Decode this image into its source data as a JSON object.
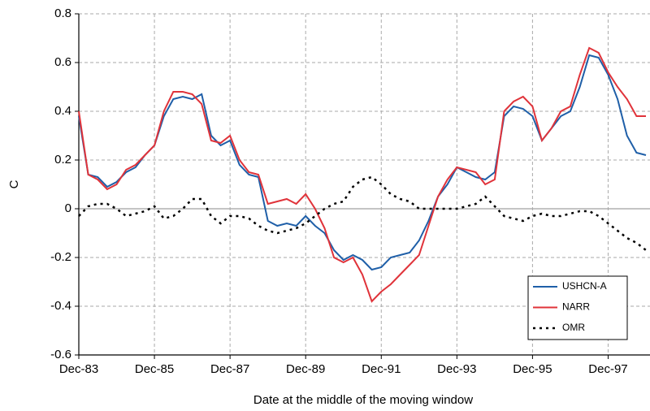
{
  "chart_data": {
    "type": "line",
    "x_label": "Date at the middle of the moving window",
    "y_label": "C",
    "x": [
      "Dec-83",
      "Mar-84",
      "Jun-84",
      "Sep-84",
      "Dec-84",
      "Mar-85",
      "Jun-85",
      "Sep-85",
      "Dec-85",
      "Mar-86",
      "Jun-86",
      "Sep-86",
      "Dec-86",
      "Mar-87",
      "Jun-87",
      "Sep-87",
      "Dec-87",
      "Mar-88",
      "Jun-88",
      "Sep-88",
      "Dec-88",
      "Mar-89",
      "Jun-89",
      "Sep-89",
      "Dec-89",
      "Mar-90",
      "Jun-90",
      "Sep-90",
      "Dec-90",
      "Mar-91",
      "Jun-91",
      "Sep-91",
      "Dec-91",
      "Mar-92",
      "Jun-92",
      "Sep-92",
      "Dec-92",
      "Mar-93",
      "Jun-93",
      "Sep-93",
      "Dec-93",
      "Mar-94",
      "Jun-94",
      "Sep-94",
      "Dec-94",
      "Mar-95",
      "Jun-95",
      "Sep-95",
      "Dec-95",
      "Mar-96",
      "Jun-96",
      "Sep-96",
      "Dec-96",
      "Mar-97",
      "Jun-97",
      "Sep-97",
      "Dec-97",
      "Mar-98",
      "Jun-98",
      "Sep-98",
      "Dec-98"
    ],
    "xticks": [
      "Dec-83",
      "Dec-85",
      "Dec-87",
      "Dec-89",
      "Dec-91",
      "Dec-93",
      "Dec-95",
      "Dec-97"
    ],
    "ylim": [
      -0.6,
      0.8
    ],
    "yticks": [
      -0.6,
      -0.4,
      -0.2,
      0,
      0.2,
      0.4,
      0.6,
      0.8
    ],
    "grid": true,
    "legend": "lower right",
    "series": [
      {
        "name": "USHCN-A",
        "color": "#1f5fa8",
        "style": "solid",
        "values": [
          0.38,
          0.14,
          0.13,
          0.09,
          0.11,
          0.15,
          0.17,
          0.22,
          0.26,
          0.38,
          0.45,
          0.46,
          0.45,
          0.47,
          0.3,
          0.26,
          0.28,
          0.18,
          0.14,
          0.13,
          -0.05,
          -0.07,
          -0.06,
          -0.07,
          -0.03,
          -0.07,
          -0.1,
          -0.17,
          -0.21,
          -0.19,
          -0.21,
          -0.25,
          -0.24,
          -0.2,
          -0.19,
          -0.18,
          -0.13,
          -0.05,
          0.05,
          0.1,
          0.17,
          0.15,
          0.13,
          0.12,
          0.15,
          0.38,
          0.42,
          0.41,
          0.38,
          0.28,
          0.33,
          0.38,
          0.4,
          0.5,
          0.63,
          0.62,
          0.55,
          0.45,
          0.3,
          0.23,
          0.22
        ]
      },
      {
        "name": "NARR",
        "color": "#e0333a",
        "style": "solid",
        "values": [
          0.4,
          0.14,
          0.12,
          0.08,
          0.1,
          0.16,
          0.18,
          0.22,
          0.26,
          0.4,
          0.48,
          0.48,
          0.47,
          0.43,
          0.28,
          0.27,
          0.3,
          0.2,
          0.15,
          0.14,
          0.02,
          0.03,
          0.04,
          0.02,
          0.06,
          0.0,
          -0.08,
          -0.2,
          -0.22,
          -0.2,
          -0.27,
          -0.38,
          -0.34,
          -0.31,
          -0.27,
          -0.23,
          -0.19,
          -0.07,
          0.05,
          0.12,
          0.17,
          0.16,
          0.15,
          0.1,
          0.12,
          0.4,
          0.44,
          0.46,
          0.42,
          0.28,
          0.33,
          0.4,
          0.42,
          0.55,
          0.66,
          0.64,
          0.56,
          0.5,
          0.45,
          0.38,
          0.38
        ]
      },
      {
        "name": "OMR",
        "color": "#000000",
        "style": "dotted",
        "values": [
          -0.03,
          0.01,
          0.02,
          0.02,
          0.0,
          -0.03,
          -0.02,
          -0.01,
          0.01,
          -0.04,
          -0.03,
          0.0,
          0.04,
          0.04,
          -0.03,
          -0.06,
          -0.03,
          -0.03,
          -0.04,
          -0.07,
          -0.09,
          -0.1,
          -0.09,
          -0.08,
          -0.06,
          -0.03,
          0.0,
          0.02,
          0.03,
          0.09,
          0.12,
          0.13,
          0.1,
          0.06,
          0.04,
          0.03,
          0.0,
          0.0,
          0.0,
          0.0,
          0.0,
          0.01,
          0.02,
          0.05,
          0.01,
          -0.03,
          -0.04,
          -0.05,
          -0.03,
          -0.02,
          -0.03,
          -0.03,
          -0.02,
          -0.01,
          -0.01,
          -0.03,
          -0.06,
          -0.09,
          -0.12,
          -0.14,
          -0.17
        ]
      }
    ]
  }
}
